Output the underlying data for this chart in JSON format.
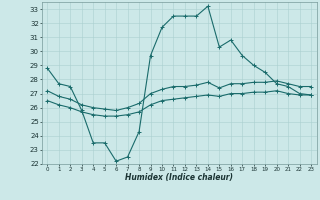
{
  "title": "",
  "xlabel": "Humidex (Indice chaleur)",
  "ylabel": "",
  "xlim": [
    -0.5,
    23.5
  ],
  "ylim": [
    22,
    33.5
  ],
  "yticks": [
    22,
    23,
    24,
    25,
    26,
    27,
    28,
    29,
    30,
    31,
    32,
    33
  ],
  "xticks": [
    0,
    1,
    2,
    3,
    4,
    5,
    6,
    7,
    8,
    9,
    10,
    11,
    12,
    13,
    14,
    15,
    16,
    17,
    18,
    19,
    20,
    21,
    22,
    23
  ],
  "bg_color": "#cce8e8",
  "grid_color": "#aad0d0",
  "line_color": "#1a6b6b",
  "line1_x": [
    0,
    1,
    2,
    3,
    4,
    5,
    6,
    7,
    8,
    9,
    10,
    11,
    12,
    13,
    14,
    15,
    16,
    17,
    18,
    19,
    20,
    21,
    22,
    23
  ],
  "line1_y": [
    28.8,
    27.7,
    27.5,
    25.8,
    23.5,
    23.5,
    22.2,
    22.5,
    24.3,
    29.7,
    31.7,
    32.5,
    32.5,
    32.5,
    33.2,
    30.3,
    30.8,
    29.7,
    29.0,
    28.5,
    27.7,
    27.5,
    27.0,
    26.9
  ],
  "line2_x": [
    0,
    1,
    2,
    3,
    4,
    5,
    6,
    7,
    8,
    9,
    10,
    11,
    12,
    13,
    14,
    15,
    16,
    17,
    18,
    19,
    20,
    21,
    22,
    23
  ],
  "line2_y": [
    27.2,
    26.8,
    26.6,
    26.2,
    26.0,
    25.9,
    25.8,
    26.0,
    26.3,
    27.0,
    27.3,
    27.5,
    27.5,
    27.6,
    27.8,
    27.4,
    27.7,
    27.7,
    27.8,
    27.8,
    27.9,
    27.7,
    27.5,
    27.5
  ],
  "line3_x": [
    0,
    1,
    2,
    3,
    4,
    5,
    6,
    7,
    8,
    9,
    10,
    11,
    12,
    13,
    14,
    15,
    16,
    17,
    18,
    19,
    20,
    21,
    22,
    23
  ],
  "line3_y": [
    26.5,
    26.2,
    26.0,
    25.7,
    25.5,
    25.4,
    25.4,
    25.5,
    25.7,
    26.2,
    26.5,
    26.6,
    26.7,
    26.8,
    26.9,
    26.8,
    27.0,
    27.0,
    27.1,
    27.1,
    27.2,
    27.0,
    26.9,
    26.9
  ],
  "xlabel_fontsize": 5.5,
  "ytick_fontsize": 5.0,
  "xtick_fontsize": 4.0
}
